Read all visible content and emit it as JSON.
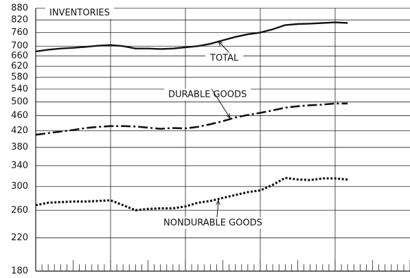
{
  "chart_data": {
    "type": "line",
    "title": "INVENTORIES",
    "log_scale": true,
    "grid": true,
    "ylim": [
      180,
      880
    ],
    "yticks": [
      180,
      220,
      260,
      300,
      340,
      380,
      420,
      460,
      500,
      540,
      580,
      620,
      660,
      700,
      760,
      820,
      880
    ],
    "xlim": [
      0,
      60
    ],
    "xticks": [
      0,
      1,
      2,
      3,
      4,
      5,
      6,
      7,
      8,
      9,
      10,
      11,
      12,
      13,
      14,
      15,
      16,
      17,
      18,
      19,
      20,
      21,
      22,
      23,
      24,
      25,
      26,
      27,
      28,
      29,
      30,
      31,
      32,
      33,
      34,
      35,
      36,
      37,
      38,
      39,
      40,
      41,
      42,
      43,
      44,
      45,
      46,
      47,
      48,
      49,
      50,
      51,
      52,
      53,
      54,
      55,
      56,
      57,
      58,
      59,
      60
    ],
    "xgrid": [
      12,
      24,
      36,
      48
    ],
    "x": [
      0,
      2,
      4,
      6,
      8,
      10,
      12,
      14,
      16,
      18,
      20,
      22,
      24,
      26,
      28,
      30,
      32,
      34,
      36,
      38,
      40,
      42,
      44,
      46,
      48,
      50
    ],
    "series": [
      {
        "name": "TOTAL",
        "color": "#111111",
        "style": "solid",
        "values": [
          678,
          685,
          690,
          693,
          697,
          702,
          705,
          700,
          690,
          690,
          688,
          690,
          695,
          700,
          710,
          725,
          740,
          752,
          760,
          775,
          795,
          800,
          802,
          805,
          808,
          805
        ]
      },
      {
        "name": "DURABLE GOODS",
        "color": "#111111",
        "style": "dashdot",
        "values": [
          410,
          414,
          418,
          422,
          427,
          430,
          432,
          432,
          431,
          428,
          425,
          427,
          426,
          430,
          437,
          445,
          455,
          462,
          468,
          475,
          483,
          487,
          490,
          492,
          495,
          495
        ]
      },
      {
        "name": "NONDURABLE GOODS",
        "color": "#111111",
        "style": "dotted",
        "values": [
          268,
          272,
          273,
          274,
          274,
          275,
          276,
          268,
          260,
          262,
          263,
          263,
          266,
          272,
          275,
          280,
          285,
          290,
          293,
          303,
          316,
          313,
          312,
          315,
          315,
          313
        ]
      }
    ]
  }
}
